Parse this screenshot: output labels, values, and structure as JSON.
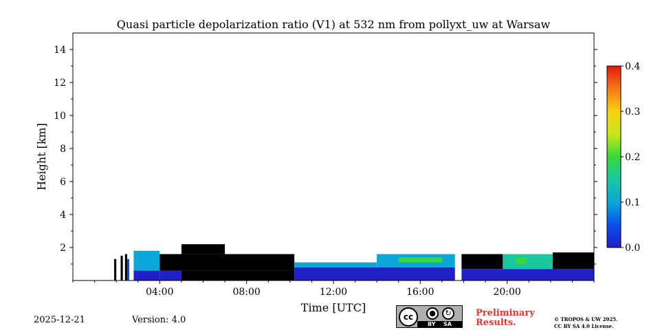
{
  "chart_data": {
    "type": "heatmap",
    "title": "Quasi particle depolarization ratio (V1) at 532 nm from pollyxt_uw at Warsaw",
    "xlabel": "Time [UTC]",
    "ylabel": "Height [km]",
    "xlim": [
      0,
      24
    ],
    "ylim": [
      0,
      15
    ],
    "x_ticks": [
      4,
      8,
      12,
      16,
      20
    ],
    "x_tick_labels": [
      "04:00",
      "08:00",
      "12:00",
      "16:00",
      "20:00"
    ],
    "y_ticks": [
      2,
      4,
      6,
      8,
      10,
      12,
      14
    ],
    "y_tick_labels": [
      "2",
      "4",
      "6",
      "8",
      "10",
      "12",
      "14"
    ],
    "colorbar": {
      "min": 0.0,
      "max": 0.4,
      "ticks": [
        0.0,
        0.1,
        0.2,
        0.3,
        0.4
      ],
      "tick_labels": [
        "0.0",
        "0.1",
        "0.2",
        "0.3",
        "0.4"
      ],
      "colormap": [
        "#2020c8",
        "#0a50f0",
        "#0aa8d8",
        "#18c8a0",
        "#3ad83a",
        "#c8e81a",
        "#f8d010",
        "#f87818",
        "#e01a10"
      ]
    },
    "cloud_mask_color": "#000000",
    "regions": [
      {
        "t0": 1.9,
        "t1": 2.0,
        "h0": 0.0,
        "h1": 1.3,
        "kind": "cloud"
      },
      {
        "t0": 2.2,
        "t1": 2.3,
        "h0": 0.0,
        "h1": 1.5,
        "kind": "cloud"
      },
      {
        "t0": 2.4,
        "t1": 2.5,
        "h0": 0.0,
        "h1": 1.6,
        "kind": "cloud"
      },
      {
        "t0": 2.5,
        "t1": 2.6,
        "h0": 0.0,
        "h1": 1.3,
        "kind": "layer",
        "value": 0.05
      },
      {
        "t0": 2.8,
        "t1": 4.0,
        "h0": 0.0,
        "h1": 0.6,
        "kind": "layer",
        "value": 0.01
      },
      {
        "t0": 2.8,
        "t1": 4.0,
        "h0": 0.6,
        "h1": 1.8,
        "kind": "layer",
        "value": 0.09
      },
      {
        "t0": 4.0,
        "t1": 5.0,
        "h0": 0.0,
        "h1": 0.6,
        "kind": "layer",
        "value": 0.01
      },
      {
        "t0": 4.0,
        "t1": 10.2,
        "h0": 0.6,
        "h1": 1.6,
        "kind": "cloud"
      },
      {
        "t0": 5.0,
        "t1": 10.2,
        "h0": 0.0,
        "h1": 0.6,
        "kind": "cloud"
      },
      {
        "t0": 5.0,
        "t1": 7.0,
        "h0": 1.6,
        "h1": 2.2,
        "kind": "cloud"
      },
      {
        "t0": 10.2,
        "t1": 17.6,
        "h0": 0.0,
        "h1": 0.8,
        "kind": "layer",
        "value": 0.02
      },
      {
        "t0": 10.2,
        "t1": 14.0,
        "h0": 0.8,
        "h1": 1.1,
        "kind": "layer",
        "value": 0.08
      },
      {
        "t0": 14.0,
        "t1": 17.6,
        "h0": 0.8,
        "h1": 1.6,
        "kind": "layer",
        "value": 0.12
      },
      {
        "t0": 15.0,
        "t1": 17.0,
        "h0": 1.1,
        "h1": 1.4,
        "kind": "layer",
        "value": 0.18
      },
      {
        "t0": 17.9,
        "t1": 24.0,
        "h0": 0.0,
        "h1": 0.7,
        "kind": "layer",
        "value": 0.02
      },
      {
        "t0": 17.9,
        "t1": 19.8,
        "h0": 0.7,
        "h1": 1.6,
        "kind": "cloud"
      },
      {
        "t0": 19.8,
        "t1": 22.1,
        "h0": 0.7,
        "h1": 1.6,
        "kind": "layer",
        "value": 0.13
      },
      {
        "t0": 20.4,
        "t1": 20.9,
        "h0": 1.0,
        "h1": 1.4,
        "kind": "layer",
        "value": 0.2
      },
      {
        "t0": 22.1,
        "t1": 24.0,
        "h0": 0.7,
        "h1": 1.7,
        "kind": "cloud"
      },
      {
        "t0": 22.1,
        "t1": 24.0,
        "h0": 0.5,
        "h1": 0.7,
        "kind": "layer",
        "value": 0.01
      }
    ],
    "gaps": [
      {
        "t0": 2.6,
        "t1": 2.7
      },
      {
        "t0": 17.6,
        "t1": 17.8
      }
    ]
  },
  "footer": {
    "date": "2025-12-21",
    "version": "Version: 4.0",
    "preliminary_line1": "Preliminary",
    "preliminary_line2": "Results.",
    "copyright_line1": "© TROPOS & UW 2025.",
    "copyright_line2": "CC BY SA 4.0 License."
  },
  "license_badge": {
    "cc": "cc",
    "by": "BY",
    "sa": "SA",
    "by_icon": "person-icon",
    "sa_icon": "share-alike-icon"
  }
}
